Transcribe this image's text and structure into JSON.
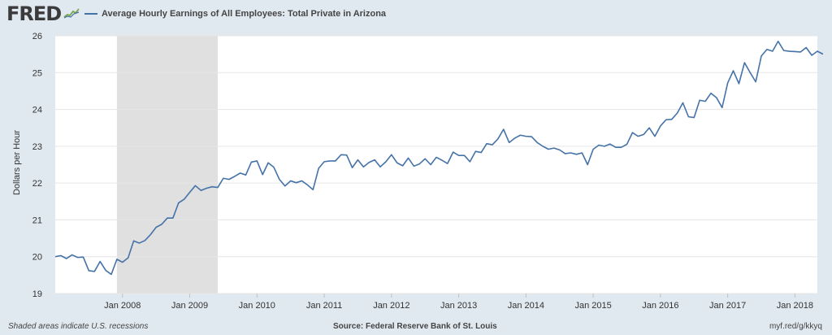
{
  "brand": {
    "logo_text": "FRED",
    "accent": "#4572a7",
    "background": "#e1e9f0",
    "plot_background": "#ffffff",
    "recession_shade": "#e0e0e0"
  },
  "footer": {
    "note": "Shaded areas indicate U.S. recessions",
    "source": "Source: Federal Reserve Bank of St. Louis",
    "link": "myf.red/g/kkyq"
  },
  "chart_data": {
    "type": "line",
    "title": "",
    "xlabel": "",
    "ylabel": "Dollars per Hour",
    "ylim": [
      19,
      26
    ],
    "yticks": [
      19,
      20,
      21,
      22,
      23,
      24,
      25,
      26
    ],
    "xlim": [
      "2007-01",
      "2018-05"
    ],
    "xticks": [
      {
        "label": "Jan 2008",
        "date": "2008-01"
      },
      {
        "label": "Jan 2009",
        "date": "2009-01"
      },
      {
        "label": "Jan 2010",
        "date": "2010-01"
      },
      {
        "label": "Jan 2011",
        "date": "2011-01"
      },
      {
        "label": "Jan 2012",
        "date": "2012-01"
      },
      {
        "label": "Jan 2013",
        "date": "2013-01"
      },
      {
        "label": "Jan 2014",
        "date": "2014-01"
      },
      {
        "label": "Jan 2015",
        "date": "2015-01"
      },
      {
        "label": "Jan 2016",
        "date": "2016-01"
      },
      {
        "label": "Jan 2017",
        "date": "2017-01"
      },
      {
        "label": "Jan 2018",
        "date": "2018-01"
      }
    ],
    "recessions": [
      {
        "start": "2007-12",
        "end": "2009-06"
      }
    ],
    "grid": true,
    "legend_position": "top-left",
    "series": [
      {
        "name": "Average Hourly Earnings of All Employees: Total Private in Arizona",
        "color": "#4572a7",
        "start": "2007-01",
        "frequency": "monthly",
        "values": [
          20.0,
          20.03,
          19.95,
          20.05,
          19.98,
          19.99,
          19.62,
          19.6,
          19.87,
          19.63,
          19.52,
          19.93,
          19.85,
          19.97,
          20.43,
          20.37,
          20.44,
          20.6,
          20.8,
          20.88,
          21.05,
          21.05,
          21.46,
          21.56,
          21.75,
          21.93,
          21.8,
          21.86,
          21.9,
          21.88,
          22.13,
          22.1,
          22.18,
          22.27,
          22.22,
          22.57,
          22.6,
          22.23,
          22.55,
          22.43,
          22.1,
          21.92,
          22.06,
          22.01,
          22.06,
          21.95,
          21.82,
          22.4,
          22.58,
          22.6,
          22.6,
          22.77,
          22.76,
          22.42,
          22.63,
          22.44,
          22.56,
          22.63,
          22.44,
          22.58,
          22.77,
          22.55,
          22.47,
          22.68,
          22.46,
          22.52,
          22.66,
          22.5,
          22.7,
          22.62,
          22.53,
          22.84,
          22.75,
          22.75,
          22.58,
          22.86,
          22.83,
          23.07,
          23.04,
          23.2,
          23.46,
          23.1,
          23.22,
          23.3,
          23.27,
          23.26,
          23.1,
          23.0,
          22.92,
          22.95,
          22.9,
          22.8,
          22.82,
          22.78,
          22.82,
          22.5,
          22.92,
          23.03,
          23.0,
          23.06,
          22.97,
          22.97,
          23.05,
          23.37,
          23.27,
          23.32,
          23.5,
          23.27,
          23.55,
          23.72,
          23.73,
          23.9,
          24.18,
          23.8,
          23.78,
          24.25,
          24.22,
          24.44,
          24.32,
          24.05,
          24.72,
          25.05,
          24.7,
          25.27,
          25.0,
          24.75,
          25.45,
          25.63,
          25.58,
          25.85,
          25.6,
          25.58,
          25.57,
          25.56,
          25.68,
          25.47,
          25.58,
          25.5
        ]
      }
    ]
  }
}
